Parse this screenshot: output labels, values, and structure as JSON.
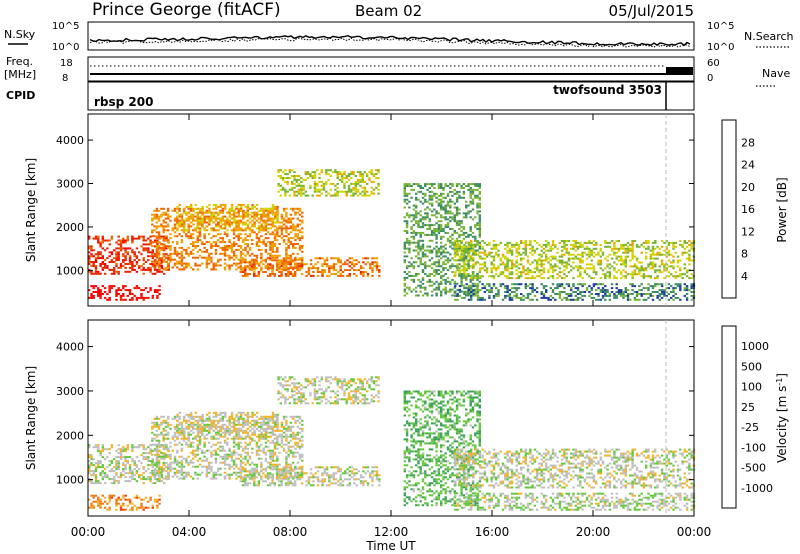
{
  "header": {
    "station": "Prince George (fitACF)",
    "beam": "Beam 02",
    "date": "05/Jul/2015"
  },
  "nsky_panel": {
    "left_label": "N.Sky",
    "left_ticks": [
      "10^5",
      "10^0"
    ],
    "right_ticks": [
      "10^5",
      "10^0"
    ],
    "right_label": "N.Search"
  },
  "freq_panel": {
    "left_label_1": "Freq.",
    "left_label_2": "[MHz]",
    "left_ticks": [
      "18",
      "8"
    ],
    "right_ticks": [
      "60",
      "0"
    ],
    "right_label": "Nave"
  },
  "cpid_panel": {
    "label": "CPID",
    "mode_1": "rbsp 200",
    "mode_2": "twofsound 3503"
  },
  "colors": {
    "power_scale": [
      "#0000ff",
      "#1e3ca0",
      "#3c8c64",
      "#78b432",
      "#d2d200",
      "#f0a000",
      "#f06400",
      "#e62800",
      "#ff0000"
    ],
    "velocity_scale": [
      "#0000ff",
      "#1e50b4",
      "#3ca05a",
      "#64c83c",
      "#bebebe",
      "#f0b428",
      "#f07814",
      "#f03c00",
      "#ff0000"
    ]
  },
  "chart_data": [
    {
      "type": "heatmap",
      "name": "power",
      "xlabel": "Time UT",
      "ylabel": "Slant Range [km]",
      "xlim": [
        0,
        24
      ],
      "ylim": [
        180,
        4600
      ],
      "xticks": [
        "00:00",
        "04:00",
        "08:00",
        "12:00",
        "16:00",
        "20:00",
        "00:00"
      ],
      "yticks": [
        1000,
        2000,
        3000,
        4000
      ],
      "colorbar": {
        "label": "Power [dB]",
        "ticks": [
          "4",
          "8",
          "12",
          "16",
          "20",
          "24",
          "28"
        ],
        "range": [
          0,
          30
        ]
      },
      "echo_regions": [
        {
          "t0": 0.0,
          "t1": 2.8,
          "r0": 300,
          "r1": 650,
          "value": 29
        },
        {
          "t0": 0.0,
          "t1": 3.2,
          "r0": 900,
          "r1": 1800,
          "value": 25
        },
        {
          "t0": 2.5,
          "t1": 8.5,
          "r0": 1000,
          "r1": 2400,
          "value": 20
        },
        {
          "t0": 3.5,
          "t1": 7.5,
          "r0": 1900,
          "r1": 2500,
          "value": 17
        },
        {
          "t0": 7.5,
          "t1": 11.5,
          "r0": 2700,
          "r1": 3300,
          "value": 14
        },
        {
          "t0": 6.0,
          "t1": 11.5,
          "r0": 850,
          "r1": 1300,
          "value": 21
        },
        {
          "t0": 12.5,
          "t1": 15.5,
          "r0": 400,
          "r1": 3000,
          "value": 10
        },
        {
          "t0": 14.5,
          "t1": 24.0,
          "r0": 800,
          "r1": 1700,
          "value": 14
        },
        {
          "t0": 14.5,
          "t1": 24.0,
          "r0": 300,
          "r1": 700,
          "value": 8
        }
      ]
    },
    {
      "type": "heatmap",
      "name": "velocity",
      "xlabel": "Time UT",
      "ylabel": "Slant Range [km]",
      "xlim": [
        0,
        24
      ],
      "ylim": [
        180,
        4600
      ],
      "xticks": [
        "00:00",
        "04:00",
        "08:00",
        "12:00",
        "16:00",
        "20:00",
        "00:00"
      ],
      "yticks": [
        1000,
        2000,
        3000,
        4000
      ],
      "colorbar": {
        "label": "Velocity [m s^-1]",
        "ticks": [
          "1000",
          "500",
          "100",
          "25",
          "-25",
          "-100",
          "-500",
          "-1000"
        ],
        "range": [
          -1000,
          1000
        ]
      },
      "echo_regions": [
        {
          "t0": 0.0,
          "t1": 2.8,
          "r0": 300,
          "r1": 650,
          "value": -400
        },
        {
          "t0": 0.0,
          "t1": 3.2,
          "r0": 900,
          "r1": 1800,
          "value": 0
        },
        {
          "t0": 2.5,
          "t1": 8.5,
          "r0": 1000,
          "r1": 2400,
          "value": 0
        },
        {
          "t0": 3.5,
          "t1": 7.5,
          "r0": 1900,
          "r1": 2500,
          "value": -80
        },
        {
          "t0": 7.5,
          "t1": 11.5,
          "r0": 2700,
          "r1": 3300,
          "value": 0
        },
        {
          "t0": 6.0,
          "t1": 11.5,
          "r0": 850,
          "r1": 1300,
          "value": 0
        },
        {
          "t0": 12.5,
          "t1": 15.5,
          "r0": 400,
          "r1": 3000,
          "value": 300
        },
        {
          "t0": 14.5,
          "t1": 24.0,
          "r0": 800,
          "r1": 1700,
          "value": 0
        },
        {
          "t0": 14.5,
          "t1": 24.0,
          "r0": 300,
          "r1": 700,
          "value": 60
        }
      ]
    }
  ]
}
